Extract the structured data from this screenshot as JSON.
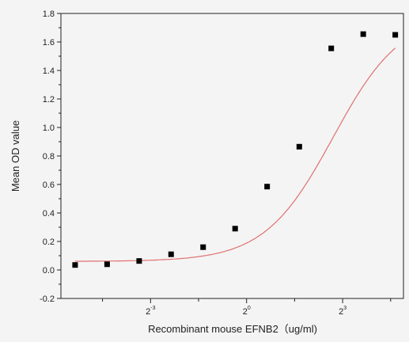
{
  "chart_data": {
    "type": "scatter",
    "title": "",
    "xlabel": "Recombinant mouse  EFNB2（ug/ml)",
    "ylabel": "Mean OD value",
    "x_scale": "log2",
    "x_tick_labels": [
      {
        "base": "2",
        "exp": "-3",
        "value": 0.125
      },
      {
        "base": "2",
        "exp": "0",
        "value": 1
      },
      {
        "base": "2",
        "exp": "3",
        "value": 8
      }
    ],
    "ylim": [
      -0.2,
      1.8
    ],
    "y_ticks": [
      "-0.2",
      "0.0",
      "0.2",
      "0.4",
      "0.6",
      "0.8",
      "1.0",
      "1.2",
      "1.4",
      "1.6",
      "1.8"
    ],
    "grid": false,
    "legend": "none",
    "series": [
      {
        "marker": "square",
        "color": "#000000",
        "x": [
          0.0244,
          0.0488,
          0.0977,
          0.195,
          0.39,
          0.78,
          1.56,
          3.13,
          6.25,
          12.5,
          25
        ],
        "y": [
          0.035,
          0.04,
          0.063,
          0.11,
          0.16,
          0.29,
          0.585,
          0.865,
          1.555,
          1.655,
          1.65
        ]
      }
    ],
    "fit_curve": {
      "type": "sigmoid",
      "color": "#e07070",
      "bottom": 0.06,
      "top": 1.8,
      "ec50": 6.5,
      "hill": 1.35
    }
  }
}
